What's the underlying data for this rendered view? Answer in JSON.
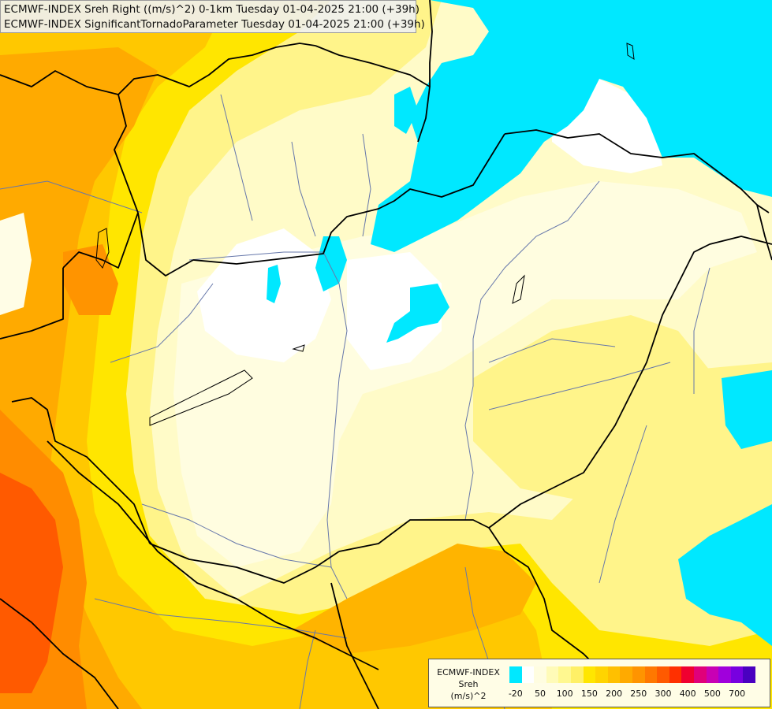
{
  "header": {
    "line1": "ECMWF-INDEX Sreh Right ((m/s)^2) 0-1km Tuesday 01-04-2025 21:00 (+39h)",
    "line2": "ECMWF-INDEX SignificantTornadoParameter Tuesday 01-04-2025 21:00 (+39h)"
  },
  "legend": {
    "label_line1": "ECMWF-INDEX",
    "label_line2": "Sreh",
    "label_line3": "(m/s)^2",
    "colors": [
      "#00e8ff",
      "#ffffff",
      "#fffde0",
      "#fffbb8",
      "#fff890",
      "#fff066",
      "#ffe600",
      "#ffd400",
      "#ffc000",
      "#ffaa00",
      "#ff9400",
      "#ff7800",
      "#ff5a00",
      "#ff3000",
      "#f00030",
      "#e0007a",
      "#c800b4",
      "#a000dc",
      "#7800e0",
      "#4a00c0",
      "#2000a0",
      "#000080"
    ],
    "ticks": [
      {
        "label": "-20",
        "index": 0.5
      },
      {
        "label": "50",
        "index": 2.5
      },
      {
        "label": "100",
        "index": 4.5
      },
      {
        "label": "150",
        "index": 6.5
      },
      {
        "label": "200",
        "index": 8.5
      },
      {
        "label": "250",
        "index": 10.5
      },
      {
        "label": "300",
        "index": 12.5
      },
      {
        "label": "400",
        "index": 14.5
      },
      {
        "label": "500",
        "index": 16.5
      },
      {
        "label": "700",
        "index": 18.5
      }
    ]
  },
  "colors": {
    "cyan": "#00e8ff",
    "white": "#ffffff",
    "pale": "#fffbc8",
    "light_yellow": "#fff48a",
    "yellow": "#ffe600",
    "gold": "#ffc800",
    "orange": "#ffaa00",
    "dark_orange": "#ff8c00",
    "red_orange": "#ff5a00",
    "border": "#000000",
    "river": "#6677aa"
  }
}
